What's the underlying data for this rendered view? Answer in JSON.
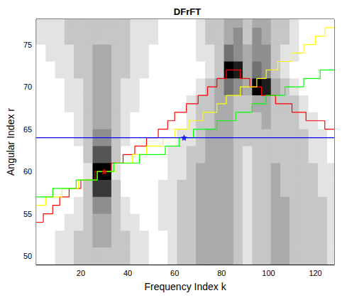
{
  "chart_data": {
    "type": "heatmap",
    "title": "DFrFT",
    "x_label": "Frequency Index k",
    "y_label": "Angular Index r",
    "xlim": [
      1,
      128
    ],
    "xticks": [
      20,
      40,
      60,
      80,
      100,
      120
    ],
    "ylim": [
      49,
      78
    ],
    "yticks": [
      50,
      55,
      60,
      65,
      70,
      75
    ],
    "grid": false,
    "heatmap": {
      "x": [
        3,
        7,
        11,
        15,
        19,
        23,
        27,
        31,
        35,
        39,
        43,
        47,
        51,
        55,
        59,
        63,
        67,
        71,
        75,
        79,
        83,
        87,
        91,
        95,
        99,
        103,
        107,
        111,
        115,
        119,
        123,
        127
      ],
      "y": [
        78,
        76,
        74,
        72,
        70,
        68,
        66,
        64,
        62,
        60,
        58,
        56,
        54,
        52,
        50
      ],
      "zlim": [
        0,
        9
      ],
      "values": [
        [
          1,
          1,
          1,
          2,
          2,
          2,
          2,
          2,
          2,
          2,
          1,
          1,
          1,
          0,
          0,
          0,
          0,
          1,
          2,
          2,
          3,
          3,
          2,
          3,
          3,
          2,
          2,
          1,
          0,
          0,
          0,
          0
        ],
        [
          1,
          1,
          1,
          2,
          2,
          2,
          2,
          2,
          2,
          2,
          1,
          1,
          1,
          0,
          0,
          0,
          0,
          1,
          2,
          2,
          3,
          4,
          2,
          4,
          3,
          2,
          2,
          1,
          0,
          0,
          0,
          0
        ],
        [
          0,
          1,
          1,
          1,
          2,
          2,
          3,
          3,
          2,
          2,
          1,
          1,
          0,
          0,
          0,
          0,
          0,
          1,
          1,
          2,
          5,
          4,
          3,
          4,
          4,
          2,
          1,
          1,
          0,
          0,
          0,
          0
        ],
        [
          0,
          0,
          1,
          1,
          2,
          2,
          3,
          3,
          2,
          2,
          1,
          1,
          0,
          0,
          0,
          0,
          0,
          0,
          1,
          2,
          9,
          8,
          3,
          5,
          4,
          2,
          1,
          0,
          0,
          0,
          0,
          0
        ],
        [
          0,
          0,
          0,
          1,
          1,
          2,
          3,
          3,
          2,
          1,
          1,
          0,
          0,
          0,
          0,
          0,
          0,
          1,
          2,
          3,
          5,
          4,
          3,
          9,
          8,
          3,
          2,
          1,
          0,
          0,
          0,
          0
        ],
        [
          0,
          0,
          0,
          1,
          1,
          2,
          3,
          3,
          2,
          1,
          1,
          0,
          0,
          0,
          0,
          0,
          1,
          2,
          2,
          3,
          3,
          2,
          2,
          3,
          3,
          2,
          2,
          2,
          1,
          0,
          0,
          0
        ],
        [
          0,
          0,
          0,
          0,
          1,
          2,
          3,
          3,
          2,
          1,
          0,
          0,
          0,
          0,
          0,
          0,
          1,
          2,
          2,
          3,
          3,
          2,
          2,
          2,
          3,
          2,
          2,
          2,
          1,
          1,
          0,
          0
        ],
        [
          0,
          0,
          0,
          0,
          1,
          2,
          4,
          4,
          2,
          1,
          0,
          0,
          0,
          0,
          0,
          1,
          1,
          2,
          3,
          3,
          3,
          2,
          2,
          2,
          2,
          2,
          2,
          2,
          2,
          1,
          1,
          0
        ],
        [
          0,
          0,
          0,
          0,
          0,
          2,
          6,
          6,
          2,
          0,
          0,
          0,
          0,
          0,
          1,
          1,
          2,
          2,
          3,
          3,
          3,
          2,
          1,
          2,
          2,
          2,
          2,
          2,
          2,
          1,
          1,
          0
        ],
        [
          0,
          0,
          0,
          0,
          0,
          1,
          9,
          9,
          1,
          0,
          0,
          0,
          0,
          0,
          1,
          1,
          2,
          3,
          3,
          3,
          3,
          2,
          1,
          2,
          2,
          3,
          2,
          2,
          2,
          2,
          1,
          1
        ],
        [
          0,
          0,
          0,
          0,
          0,
          2,
          7,
          7,
          2,
          0,
          0,
          0,
          0,
          1,
          1,
          2,
          2,
          3,
          3,
          3,
          3,
          2,
          1,
          2,
          2,
          3,
          2,
          2,
          2,
          2,
          1,
          1
        ],
        [
          0,
          0,
          0,
          0,
          1,
          2,
          4,
          4,
          2,
          1,
          0,
          0,
          0,
          1,
          1,
          2,
          2,
          3,
          3,
          3,
          3,
          2,
          1,
          2,
          2,
          3,
          3,
          2,
          2,
          2,
          2,
          1
        ],
        [
          0,
          0,
          0,
          1,
          1,
          2,
          3,
          3,
          2,
          1,
          1,
          0,
          0,
          1,
          1,
          2,
          2,
          3,
          3,
          3,
          3,
          2,
          1,
          2,
          2,
          3,
          3,
          2,
          2,
          2,
          2,
          1
        ],
        [
          0,
          0,
          1,
          1,
          2,
          2,
          3,
          3,
          2,
          2,
          1,
          1,
          0,
          0,
          1,
          2,
          2,
          3,
          3,
          3,
          3,
          2,
          1,
          2,
          2,
          3,
          3,
          2,
          2,
          2,
          2,
          1
        ],
        [
          0,
          0,
          1,
          1,
          2,
          2,
          2,
          2,
          2,
          2,
          1,
          1,
          0,
          0,
          1,
          2,
          2,
          3,
          3,
          3,
          3,
          2,
          1,
          2,
          2,
          3,
          3,
          2,
          2,
          2,
          2,
          1
        ]
      ]
    },
    "series": [
      {
        "type": "line",
        "color": "#ff0000",
        "line_style": "steps",
        "x": [
          1,
          4,
          8,
          11,
          15,
          20,
          26,
          33,
          38,
          43,
          48,
          53,
          57,
          60,
          65,
          70,
          74,
          78,
          82,
          88,
          92,
          97,
          103,
          110,
          116,
          124,
          128
        ],
        "values": [
          54,
          55,
          56,
          57,
          58,
          59,
          60,
          61,
          62,
          63,
          64,
          65,
          66,
          67,
          68,
          69,
          70,
          71,
          72,
          71,
          70,
          69,
          68,
          67,
          66,
          65,
          65
        ]
      },
      {
        "type": "line",
        "color": "#ffff00",
        "line_style": "steps",
        "x": [
          1,
          5,
          12,
          19,
          27,
          35,
          42,
          48,
          55,
          60,
          66,
          72,
          78,
          82,
          88,
          95,
          99,
          104,
          110,
          115,
          120,
          124,
          128
        ],
        "values": [
          56,
          57,
          58,
          59,
          60,
          61,
          62,
          63,
          64,
          65,
          66,
          67,
          68,
          69,
          70,
          71,
          72,
          73,
          74,
          75,
          76,
          77,
          77
        ]
      },
      {
        "type": "line",
        "color": "#00ff00",
        "line_style": "steps",
        "x": [
          1,
          8,
          18,
          27,
          34,
          45,
          56,
          62,
          68,
          78,
          86,
          93,
          99,
          107,
          115,
          122,
          128
        ],
        "values": [
          57,
          58,
          59,
          60,
          61,
          62,
          63,
          64,
          65,
          66,
          67,
          68,
          69,
          70,
          71,
          72,
          72
        ]
      },
      {
        "type": "line",
        "color": "#0000ff",
        "line_style": "solid",
        "x": [
          1,
          128
        ],
        "values": [
          64,
          64
        ]
      },
      {
        "type": "scatter",
        "color": "#0000ff",
        "marker": "star",
        "x": [
          64
        ],
        "values": [
          64
        ]
      },
      {
        "type": "scatter",
        "color": "#ff0000",
        "marker": "star",
        "x": [
          30
        ],
        "values": [
          60
        ]
      }
    ]
  }
}
